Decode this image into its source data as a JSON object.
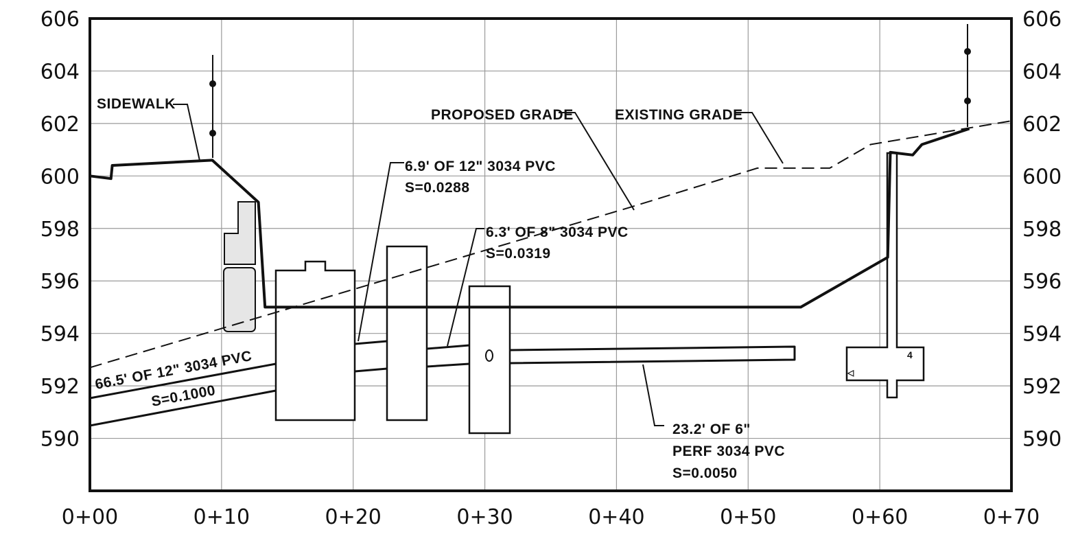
{
  "x_axis": {
    "ticks": [
      "0+00",
      "0+10",
      "0+20",
      "0+30",
      "0+40",
      "0+50",
      "0+60",
      "0+70"
    ]
  },
  "y_axis": {
    "ticks": [
      "590",
      "592",
      "594",
      "596",
      "598",
      "600",
      "602",
      "604",
      "606"
    ],
    "min": 588,
    "max": 606
  },
  "grid": true,
  "annotations": {
    "sidewalk": "SIDEWALK",
    "proposed_grade": "PROPOSED GRADE",
    "existing_grade": "EXISTING GRADE",
    "pipe_12_short": {
      "line1": "6.9' OF 12\" 3034 PVC",
      "line2": "S=0.0288"
    },
    "pipe_8": {
      "line1": "6.3' OF 8\" 3034 PVC",
      "line2": "S=0.0319"
    },
    "pipe_12_long": {
      "line1": "66.5' OF 12\" 3034 PVC",
      "line2": "S=0.1000"
    },
    "pipe_6_perf": {
      "line1": "23.2' OF 6\"",
      "line2": "PERF 3034 PVC",
      "line3": "S=0.0050"
    }
  },
  "profiles": {
    "proposed_grade": [
      [
        0,
        600
      ],
      [
        1.6,
        599.9
      ],
      [
        1.7,
        600.4
      ],
      [
        9.3,
        600.6
      ],
      [
        12.8,
        599
      ],
      [
        13.3,
        595
      ],
      [
        54,
        595
      ],
      [
        60.6,
        596.9
      ],
      [
        60.8,
        600.9
      ],
      [
        62.5,
        600.8
      ],
      [
        63.2,
        601.2
      ],
      [
        66.8,
        601.8
      ]
    ],
    "existing_grade": [
      [
        0,
        592.7
      ],
      [
        41,
        598.8
      ],
      [
        50.7,
        600.3
      ],
      [
        56.2,
        600.3
      ],
      [
        59.3,
        601.2
      ],
      [
        70,
        602.1
      ]
    ]
  },
  "colors": {
    "line": "#111111",
    "grid": "#9a9a9a",
    "fill": "#e6e6e6"
  }
}
